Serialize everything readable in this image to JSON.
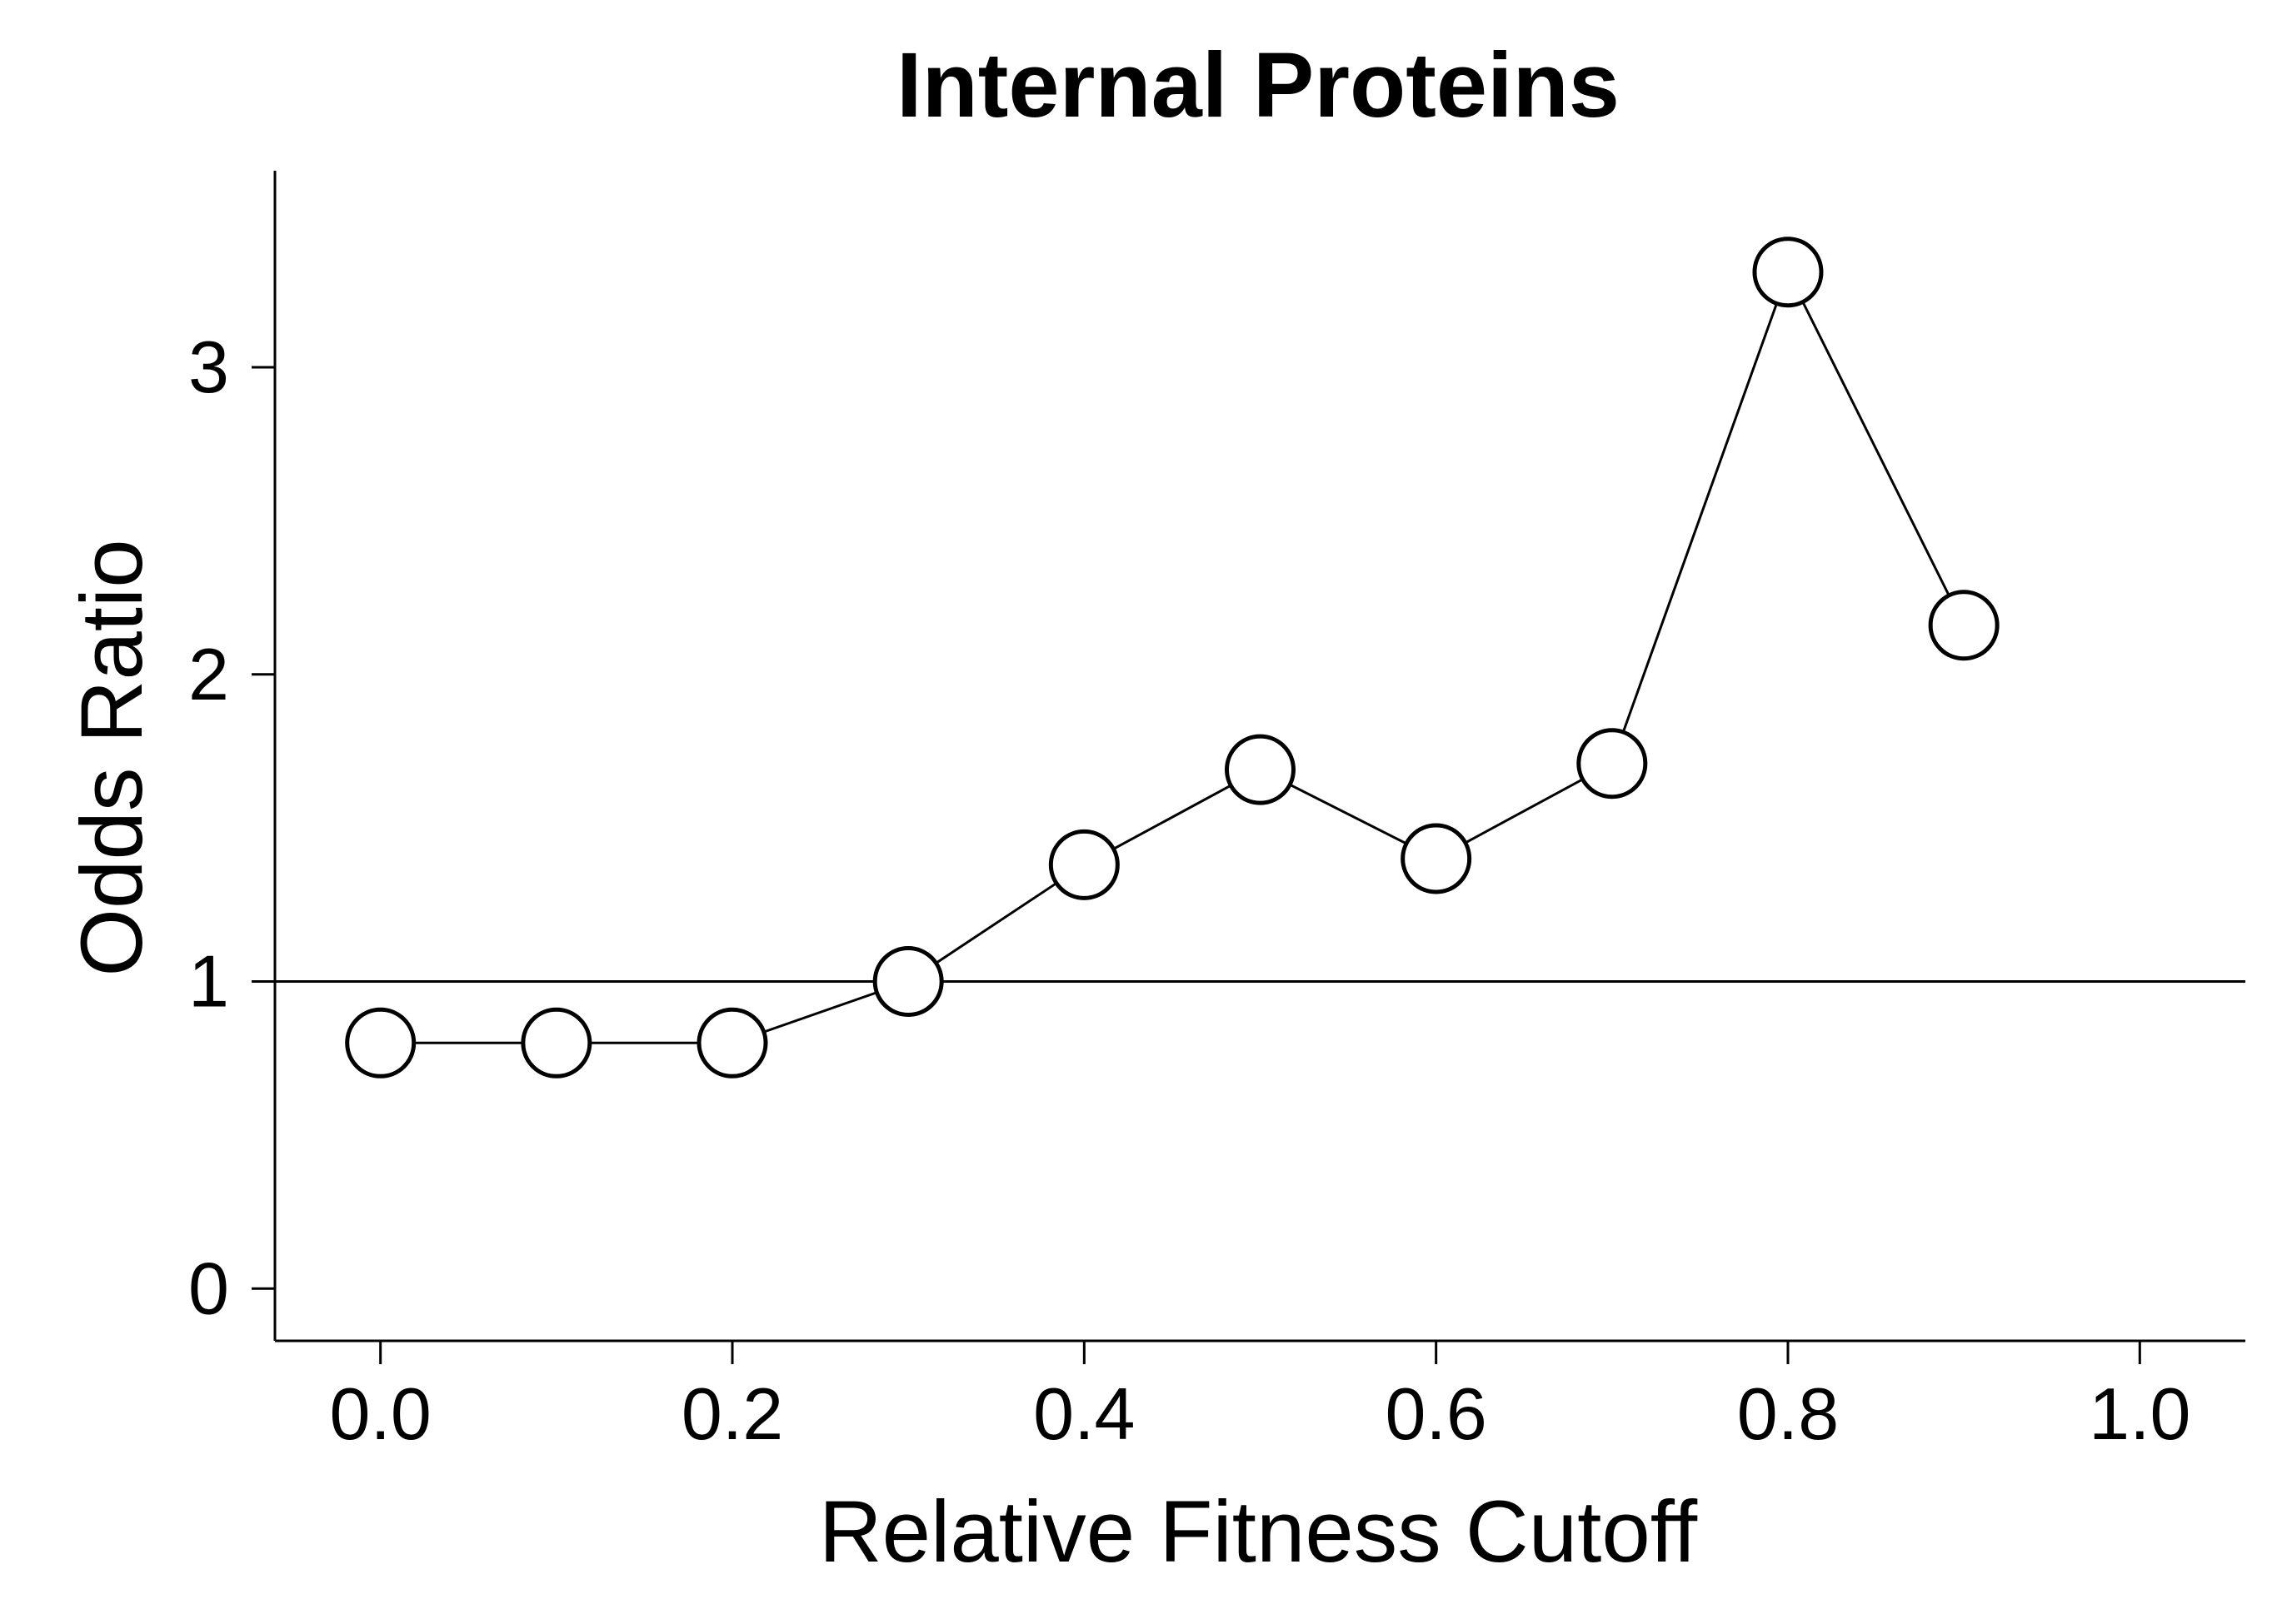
{
  "chart_data": {
    "type": "line",
    "title": "Internal Proteins",
    "xlabel": "Relative Fitness Cutoff",
    "ylabel": "Odds Ratio",
    "x_ticks": [
      "0.0",
      "0.2",
      "0.4",
      "0.6",
      "0.8",
      "1.0"
    ],
    "y_ticks": [
      "0",
      "1",
      "2",
      "3"
    ],
    "xlim": [
      -0.06,
      1.06
    ],
    "ylim": [
      -0.17,
      3.64
    ],
    "reference_line_y": 1,
    "grid": false,
    "legend": "none",
    "marker": "open-circle",
    "colors": {
      "line": "#000000",
      "marker_fill": "#ffffff",
      "background": "#ffffff"
    },
    "series": [
      {
        "x": [
          0.0,
          0.1,
          0.2,
          0.3,
          0.4,
          0.5,
          0.6,
          0.7,
          0.8,
          0.9
        ],
        "y": [
          0.8,
          0.8,
          0.8,
          1.0,
          1.38,
          1.69,
          1.4,
          1.71,
          3.31,
          2.16
        ]
      }
    ]
  }
}
